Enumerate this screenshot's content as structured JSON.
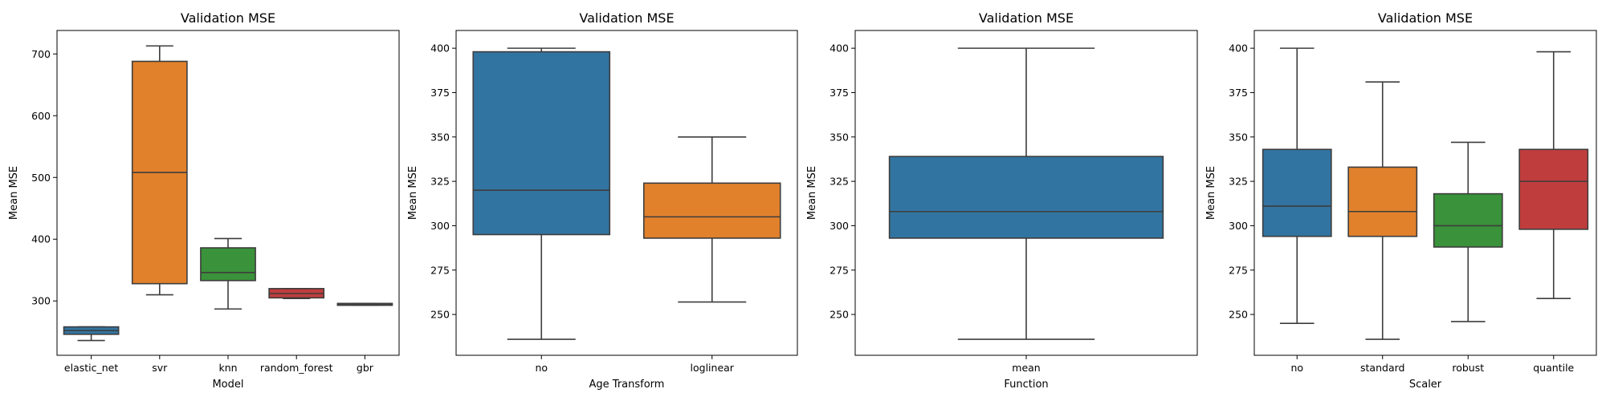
{
  "chart_data": [
    {
      "type": "box",
      "title": "Validation MSE",
      "xlabel": "Model",
      "ylabel": "Mean MSE",
      "ylim": [
        212,
        738
      ],
      "yticks": [
        300,
        400,
        500,
        600,
        700
      ],
      "categories": [
        "elastic_net",
        "svr",
        "knn",
        "random_forest",
        "gbr"
      ],
      "boxes": [
        {
          "category": "elastic_net",
          "whisker_low": 236,
          "q1": 246,
          "median": 252,
          "q3": 258,
          "whisker_high": 258,
          "color": "#3274a1"
        },
        {
          "category": "svr",
          "whisker_low": 310,
          "q1": 328,
          "median": 508,
          "q3": 688,
          "whisker_high": 713,
          "color": "#e1812c"
        },
        {
          "category": "knn",
          "whisker_low": 287,
          "q1": 333,
          "median": 346,
          "q3": 386,
          "whisker_high": 401,
          "color": "#3a923a"
        },
        {
          "category": "random_forest",
          "whisker_low": 304,
          "q1": 305,
          "median": 312,
          "q3": 320,
          "whisker_high": 320,
          "color": "#c03d3e"
        },
        {
          "category": "gbr",
          "whisker_low": 293,
          "q1": 293,
          "median": 294,
          "q3": 296,
          "whisker_high": 296,
          "color": "#9372b2"
        }
      ]
    },
    {
      "type": "box",
      "title": "Validation MSE",
      "xlabel": "Age Transform",
      "ylabel": "Mean MSE",
      "ylim": [
        227,
        410
      ],
      "yticks": [
        250,
        275,
        300,
        325,
        350,
        375,
        400
      ],
      "categories": [
        "no",
        "loglinear"
      ],
      "boxes": [
        {
          "category": "no",
          "whisker_low": 236,
          "q1": 295,
          "median": 320,
          "q3": 398,
          "whisker_high": 400,
          "color": "#3274a1"
        },
        {
          "category": "loglinear",
          "whisker_low": 257,
          "q1": 293,
          "median": 305,
          "q3": 324,
          "whisker_high": 350,
          "color": "#e1812c"
        }
      ]
    },
    {
      "type": "box",
      "title": "Validation MSE",
      "xlabel": "Function",
      "ylabel": "Mean MSE",
      "ylim": [
        227,
        410
      ],
      "yticks": [
        250,
        275,
        300,
        325,
        350,
        375,
        400
      ],
      "categories": [
        "mean"
      ],
      "boxes": [
        {
          "category": "mean",
          "whisker_low": 236,
          "q1": 293,
          "median": 308,
          "q3": 339,
          "whisker_high": 400,
          "color": "#3274a1"
        }
      ]
    },
    {
      "type": "box",
      "title": "Validation MSE",
      "xlabel": "Scaler",
      "ylabel": "Mean MSE",
      "ylim": [
        227,
        410
      ],
      "yticks": [
        250,
        275,
        300,
        325,
        350,
        375,
        400
      ],
      "categories": [
        "no",
        "standard",
        "robust",
        "quantile"
      ],
      "boxes": [
        {
          "category": "no",
          "whisker_low": 245,
          "q1": 294,
          "median": 311,
          "q3": 343,
          "whisker_high": 400,
          "color": "#3274a1"
        },
        {
          "category": "standard",
          "whisker_low": 236,
          "q1": 294,
          "median": 308,
          "q3": 333,
          "whisker_high": 381,
          "color": "#e1812c"
        },
        {
          "category": "robust",
          "whisker_low": 246,
          "q1": 288,
          "median": 300,
          "q3": 318,
          "whisker_high": 347,
          "color": "#3a923a"
        },
        {
          "category": "quantile",
          "whisker_low": 259,
          "q1": 298,
          "median": 325,
          "q3": 343,
          "whisker_high": 398,
          "color": "#c03d3e"
        }
      ]
    }
  ]
}
